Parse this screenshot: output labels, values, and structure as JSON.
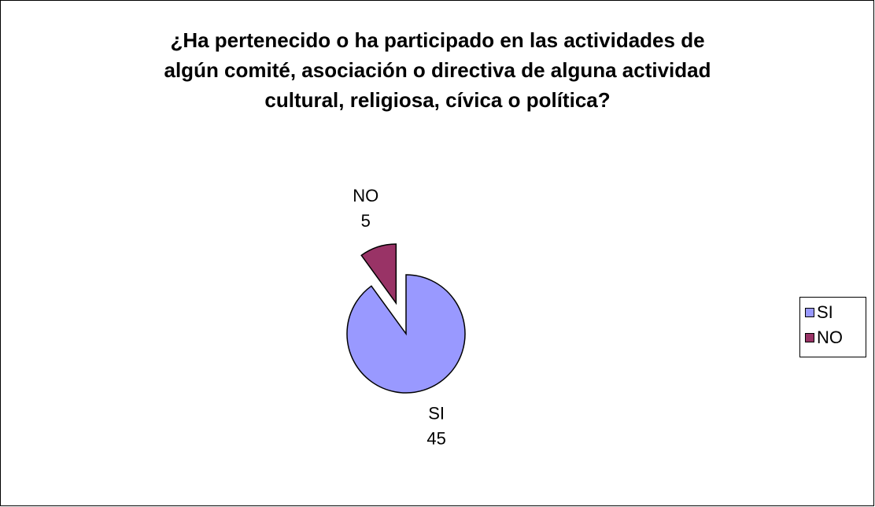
{
  "chart_data": {
    "type": "pie",
    "title": "¿Ha pertenecido o ha participado en las actividades de\nalgún comité, asociación o directiva de alguna actividad\ncultural, religiosa, cívica o política?",
    "categories": [
      "SI",
      "NO"
    ],
    "values": [
      45,
      5
    ],
    "colors": [
      "#9999ff",
      "#993366"
    ],
    "exploded": [
      "NO"
    ],
    "legend": "right"
  }
}
